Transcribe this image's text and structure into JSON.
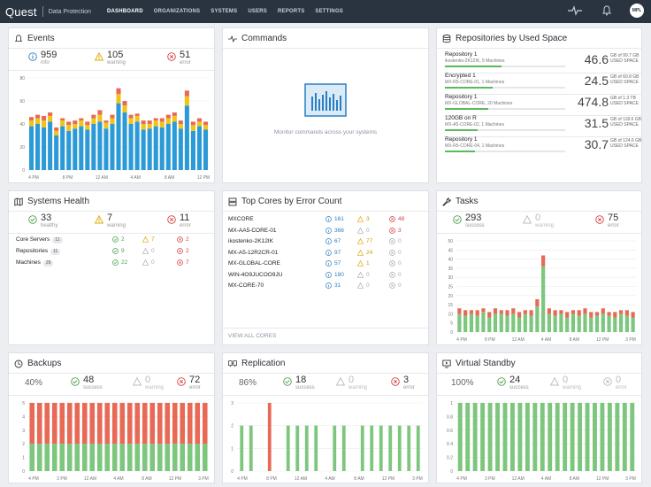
{
  "header": {
    "brand": "Quest",
    "product": "Data Protection",
    "nav": [
      "DASHBOARD",
      "ORGANIZATIONS",
      "SYSTEMS",
      "USERS",
      "REPORTS",
      "SETTINGS"
    ],
    "avatar": "MPL"
  },
  "events": {
    "title": "Events",
    "info": {
      "value": "959",
      "label": "info"
    },
    "warning": {
      "value": "105",
      "label": "warning"
    },
    "error": {
      "value": "51",
      "label": "error"
    },
    "chart_data": {
      "type": "bar",
      "stacked": true,
      "y_ticks": [
        "80",
        "60",
        "40",
        "20",
        "0"
      ],
      "ylim": [
        0,
        80
      ],
      "x_ticks": [
        "4 PM",
        "8 PM",
        "12 AM",
        "4 AM",
        "8 AM",
        "12 PM"
      ],
      "series": [
        {
          "values": [
            38,
            40,
            37,
            42,
            30,
            38,
            34,
            36,
            38,
            35,
            40,
            42,
            36,
            40,
            58,
            50,
            40,
            42,
            35,
            36,
            38,
            37,
            40,
            42,
            36,
            56,
            34,
            38,
            35
          ]
        },
        {
          "values": [
            5,
            5,
            6,
            5,
            4,
            5,
            5,
            4,
            5,
            4,
            5,
            6,
            5,
            5,
            8,
            6,
            5,
            5,
            5,
            4,
            5,
            5,
            5,
            5,
            4,
            8,
            5,
            4,
            4
          ]
        },
        {
          "values": [
            3,
            3,
            4,
            3,
            3,
            2,
            3,
            3,
            2,
            3,
            3,
            4,
            2,
            3,
            5,
            4,
            3,
            2,
            3,
            3,
            2,
            3,
            3,
            3,
            3,
            5,
            3,
            3,
            3
          ]
        }
      ],
      "colors": [
        "#2c9ad6",
        "#f0c419",
        "#e86a56"
      ]
    }
  },
  "commands": {
    "title": "Commands",
    "empty_text": "Monitor commands across your systems"
  },
  "repositories": {
    "title": "Repositories by Used Space",
    "items": [
      {
        "name": "Repository 1",
        "sub": "ikostenko-2K12IK, 5 Machines",
        "value": "46.6",
        "cap1": "GB of 99.7 GB",
        "cap2": "USED SPACE",
        "fill": 0.47
      },
      {
        "name": "Encrypted 1",
        "sub": "MX-R5-CORE-01, 1 Machines",
        "value": "24.5",
        "cap1": "GB of 60.8 GB",
        "cap2": "USED SPACE",
        "fill": 0.4
      },
      {
        "name": "Repository 1",
        "sub": "MX-GLOBAL-CORE, 20 Machines",
        "value": "474.8",
        "cap1": "GB of 1.3 TB",
        "cap2": "USED SPACE",
        "fill": 0.36
      },
      {
        "name": "120GB on R",
        "sub": "MX-A5-CORE-02, 1 Machines",
        "value": "31.5",
        "cap1": "GB of 118.6 GB",
        "cap2": "USED SPACE",
        "fill": 0.27
      },
      {
        "name": "Repository 1",
        "sub": "MX-R5-CORE-04, 1 Machines",
        "value": "30.7",
        "cap1": "GB of 124.6 GB",
        "cap2": "USED SPACE",
        "fill": 0.25
      }
    ]
  },
  "systems_health": {
    "title": "Systems Health",
    "healthy": {
      "value": "33",
      "label": "healthy"
    },
    "warning": {
      "value": "7",
      "label": "warning"
    },
    "error": {
      "value": "11",
      "label": "error"
    },
    "rows": [
      {
        "label": "Core Servers",
        "count": "11",
        "ok": "2",
        "warn": "7",
        "err": "2"
      },
      {
        "label": "Repositories",
        "count": "11",
        "ok": "9",
        "warn": "0",
        "err": "2"
      },
      {
        "label": "Machines",
        "count": "29",
        "ok": "22",
        "warn": "0",
        "err": "7"
      }
    ]
  },
  "top_cores": {
    "title": "Top Cores by Error Count",
    "rows": [
      {
        "name": "MXCORE",
        "info": "161",
        "warn": "3",
        "err": "48"
      },
      {
        "name": "MX-AA5-CORE-01",
        "info": "366",
        "warn": "0",
        "err": "3"
      },
      {
        "name": "ikostenko-2K12IK",
        "info": "67",
        "warn": "77",
        "err": "0"
      },
      {
        "name": "MX-A5-12R2CR-01",
        "info": "97",
        "warn": "24",
        "err": "0"
      },
      {
        "name": "MX-GLOBAL-CORE",
        "info": "57",
        "warn": "1",
        "err": "0"
      },
      {
        "name": "WIN-4O9JUCOO9JU",
        "info": "180",
        "warn": "0",
        "err": "0"
      },
      {
        "name": "MX-CORE-70",
        "info": "31",
        "warn": "0",
        "err": "0"
      }
    ],
    "view_all": "VIEW ALL CORES"
  },
  "tasks": {
    "title": "Tasks",
    "success": {
      "value": "293",
      "label": "success"
    },
    "warning": {
      "value": "0",
      "label": "warning"
    },
    "error": {
      "value": "75",
      "label": "error"
    },
    "chart_data": {
      "type": "bar",
      "stacked": true,
      "y_ticks": [
        "50",
        "45",
        "40",
        "35",
        "30",
        "25",
        "20",
        "15",
        "10",
        "5",
        "0"
      ],
      "ylim": [
        0,
        50
      ],
      "x_ticks": [
        "4 PM",
        "8 PM",
        "12 AM",
        "4 AM",
        "8 AM",
        "12 PM",
        "3 PM"
      ],
      "series": [
        {
          "values": [
            10,
            9,
            10,
            9,
            11,
            8,
            10,
            10,
            9,
            10,
            8,
            10,
            9,
            14,
            36,
            10,
            9,
            10,
            8,
            10,
            9,
            10,
            8,
            9,
            10,
            9,
            8,
            10,
            9,
            8
          ]
        },
        {
          "values": [
            3,
            3,
            2,
            3,
            2,
            3,
            3,
            2,
            3,
            3,
            3,
            2,
            3,
            4,
            6,
            3,
            3,
            2,
            3,
            2,
            3,
            3,
            3,
            2,
            3,
            2,
            3,
            2,
            3,
            3
          ]
        }
      ],
      "colors": [
        "#7dc67d",
        "#e86a56"
      ]
    }
  },
  "backups": {
    "title": "Backups",
    "percent": "40%",
    "success": {
      "value": "48",
      "label": "success"
    },
    "warning": {
      "value": "0",
      "label": "warning"
    },
    "error": {
      "value": "72",
      "label": "error"
    },
    "chart_data": {
      "type": "bar",
      "stacked": true,
      "y_ticks": [
        "5",
        "4",
        "3",
        "2",
        "1",
        "0"
      ],
      "ylim": [
        0,
        5
      ],
      "x_ticks": [
        "4 PM",
        "3 PM",
        "12 AM",
        "4 AM",
        "8 AM",
        "12 PM",
        "3 PM"
      ],
      "series": [
        {
          "values": [
            2,
            2,
            2,
            2,
            2,
            2,
            2,
            2,
            2,
            2,
            2,
            2,
            2,
            2,
            2,
            2,
            2,
            2,
            2,
            2,
            2,
            2,
            2,
            2
          ]
        },
        {
          "values": [
            3,
            3,
            3,
            3,
            3,
            3,
            3,
            3,
            3,
            3,
            3,
            3,
            3,
            3,
            3,
            3,
            3,
            3,
            3,
            3,
            3,
            3,
            3,
            3
          ]
        }
      ],
      "colors": [
        "#7dc67d",
        "#e86a56"
      ]
    }
  },
  "replication": {
    "title": "Replication",
    "percent": "86%",
    "success": {
      "value": "18",
      "label": "success"
    },
    "warning": {
      "value": "0",
      "label": "warning"
    },
    "error": {
      "value": "3",
      "label": "error"
    },
    "chart_data": {
      "type": "bar",
      "y_ticks": [
        "3",
        "2",
        "1",
        "0"
      ],
      "ylim": [
        0,
        3
      ],
      "x_ticks": [
        "4 PM",
        "8 PM",
        "12 AM",
        "4 AM",
        "8 AM",
        "12 PM",
        "3 PM"
      ],
      "bars": [
        {
          "v": 2,
          "c": "green"
        },
        {
          "v": 2,
          "c": "green"
        },
        {
          "v": 0,
          "c": "green"
        },
        {
          "v": 3,
          "c": "red"
        },
        {
          "v": 0,
          "c": "green"
        },
        {
          "v": 2,
          "c": "green"
        },
        {
          "v": 2,
          "c": "green"
        },
        {
          "v": 2,
          "c": "green"
        },
        {
          "v": 2,
          "c": "green"
        },
        {
          "v": 0,
          "c": "green"
        },
        {
          "v": 2,
          "c": "green"
        },
        {
          "v": 2,
          "c": "green"
        },
        {
          "v": 0,
          "c": "green"
        },
        {
          "v": 2,
          "c": "green"
        },
        {
          "v": 2,
          "c": "green"
        },
        {
          "v": 2,
          "c": "green"
        },
        {
          "v": 2,
          "c": "green"
        },
        {
          "v": 2,
          "c": "green"
        },
        {
          "v": 2,
          "c": "green"
        },
        {
          "v": 2,
          "c": "green"
        }
      ],
      "colors": {
        "green": "#7dc67d",
        "red": "#e86a56"
      }
    }
  },
  "virtual_standby": {
    "title": "Virtual Standby",
    "percent": "100%",
    "success": {
      "value": "24",
      "label": "success"
    },
    "warning": {
      "value": "0",
      "label": "warning"
    },
    "error": {
      "value": "0",
      "label": "error"
    },
    "chart_data": {
      "type": "bar",
      "y_ticks": [
        "1",
        "0.8",
        "0.6",
        "0.4",
        "0.2",
        "0"
      ],
      "ylim": [
        0,
        1
      ],
      "x_ticks": [
        "4 PM",
        "3 PM",
        "12 AM",
        "4 AM",
        "8 AM",
        "12 PM",
        "3 PM"
      ],
      "values": [
        1,
        1,
        1,
        1,
        1,
        1,
        1,
        1,
        1,
        1,
        1,
        1,
        1,
        1,
        1,
        1,
        1,
        1,
        1,
        1,
        1,
        1,
        1,
        1
      ],
      "colors": [
        "#7dc67d"
      ]
    }
  }
}
